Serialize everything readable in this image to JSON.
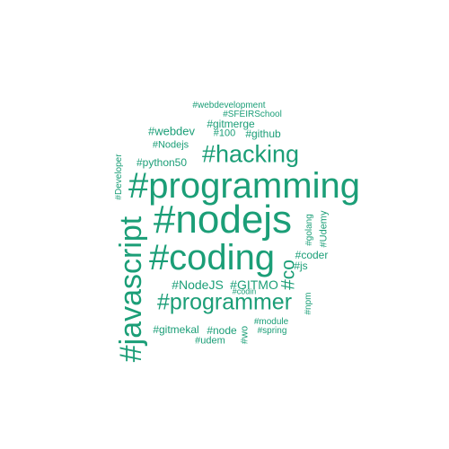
{
  "word_cloud": {
    "color": "#1b9e77",
    "words": [
      {
        "text": "#nodejs",
        "rotated": false
      },
      {
        "text": "#programming",
        "rotated": false
      },
      {
        "text": "#javascript",
        "rotated": true
      },
      {
        "text": "#coding",
        "rotated": false
      },
      {
        "text": "#programmer",
        "rotated": false
      },
      {
        "text": "#hacking",
        "rotated": false
      },
      {
        "text": "#co",
        "rotated": true
      },
      {
        "text": "#NodeJS",
        "rotated": false
      },
      {
        "text": "#GITMO",
        "rotated": false
      },
      {
        "text": "#webdev",
        "rotated": false
      },
      {
        "text": "#gitmerge",
        "rotated": false
      },
      {
        "text": "#github",
        "rotated": false
      },
      {
        "text": "#100",
        "rotated": false
      },
      {
        "text": "#Nodejs",
        "rotated": false
      },
      {
        "text": "#python50",
        "rotated": false
      },
      {
        "text": "#coder",
        "rotated": false
      },
      {
        "text": "#js",
        "rotated": false
      },
      {
        "text": "#Udemy",
        "rotated": true
      },
      {
        "text": "#golang",
        "rotated": true
      },
      {
        "text": "#SFEIRSchool",
        "rotated": false
      },
      {
        "text": "#webdevelopment",
        "rotated": false
      },
      {
        "text": "#Developer",
        "rotated": true
      },
      {
        "text": "#gitmekal",
        "rotated": false
      },
      {
        "text": "#node",
        "rotated": false
      },
      {
        "text": "#udem",
        "rotated": false
      },
      {
        "text": "#wo",
        "rotated": true
      },
      {
        "text": "#module",
        "rotated": false
      },
      {
        "text": "#spring",
        "rotated": false
      },
      {
        "text": "#npm",
        "rotated": true
      },
      {
        "text": "#codin",
        "rotated": false
      }
    ]
  }
}
